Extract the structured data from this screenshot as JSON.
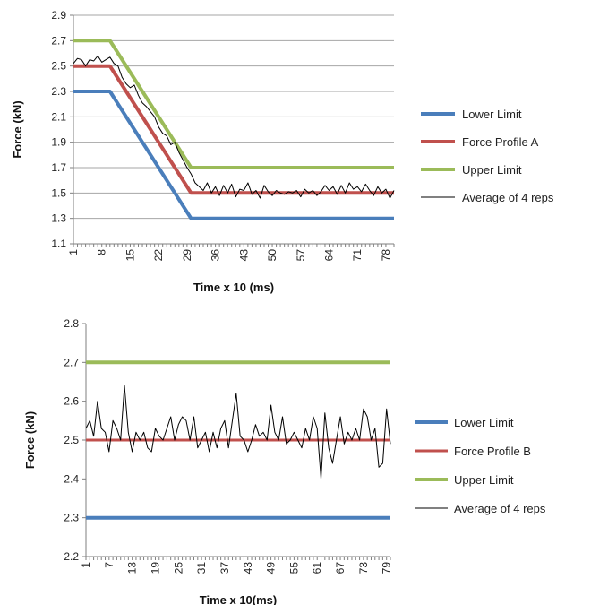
{
  "chart_data": [
    {
      "type": "line",
      "xlabel": "Time x 10 (ms)",
      "ylabel": "Force (kN)",
      "ylim": [
        1.1,
        2.9
      ],
      "y_ticks": [
        "1.1",
        "1.3",
        "1.5",
        "1.7",
        "1.9",
        "2.1",
        "2.3",
        "2.5",
        "2.7",
        "2.9"
      ],
      "x_ticks": [
        "1",
        "8",
        "15",
        "22",
        "29",
        "36",
        "43",
        "50",
        "57",
        "64",
        "71",
        "78"
      ],
      "x_range": [
        1,
        80
      ],
      "grid": "horizontal",
      "legend_position": "right",
      "series": [
        {
          "name": "Lower Limit",
          "color": "#4a7ebb",
          "width": 4,
          "points": [
            [
              1,
              2.3
            ],
            [
              10,
              2.3
            ],
            [
              30,
              1.3
            ],
            [
              80,
              1.3
            ]
          ]
        },
        {
          "name": "Force Profile A",
          "color": "#c0504d",
          "width": 4,
          "points": [
            [
              1,
              2.5
            ],
            [
              10,
              2.5
            ],
            [
              30,
              1.5
            ],
            [
              80,
              1.5
            ]
          ]
        },
        {
          "name": "Upper Limit",
          "color": "#9bbb59",
          "width": 4,
          "points": [
            [
              1,
              2.7
            ],
            [
              10,
              2.7
            ],
            [
              30,
              1.7
            ],
            [
              80,
              1.7
            ]
          ]
        },
        {
          "name": "Average of 4 reps",
          "color": "#000000",
          "width": 1,
          "points": [
            [
              1,
              2.52
            ],
            [
              2,
              2.56
            ],
            [
              3,
              2.55
            ],
            [
              4,
              2.5
            ],
            [
              5,
              2.55
            ],
            [
              6,
              2.54
            ],
            [
              7,
              2.58
            ],
            [
              8,
              2.53
            ],
            [
              9,
              2.55
            ],
            [
              10,
              2.57
            ],
            [
              11,
              2.52
            ],
            [
              12,
              2.5
            ],
            [
              13,
              2.41
            ],
            [
              14,
              2.36
            ],
            [
              15,
              2.33
            ],
            [
              16,
              2.35
            ],
            [
              17,
              2.27
            ],
            [
              18,
              2.21
            ],
            [
              19,
              2.18
            ],
            [
              20,
              2.14
            ],
            [
              21,
              2.1
            ],
            [
              22,
              2.02
            ],
            [
              23,
              1.97
            ],
            [
              24,
              1.95
            ],
            [
              25,
              1.88
            ],
            [
              26,
              1.9
            ],
            [
              27,
              1.82
            ],
            [
              28,
              1.76
            ],
            [
              29,
              1.7
            ],
            [
              30,
              1.65
            ],
            [
              31,
              1.58
            ],
            [
              32,
              1.55
            ],
            [
              33,
              1.52
            ],
            [
              34,
              1.58
            ],
            [
              35,
              1.5
            ],
            [
              36,
              1.55
            ],
            [
              37,
              1.48
            ],
            [
              38,
              1.56
            ],
            [
              39,
              1.5
            ],
            [
              40,
              1.57
            ],
            [
              41,
              1.47
            ],
            [
              42,
              1.53
            ],
            [
              43,
              1.52
            ],
            [
              44,
              1.58
            ],
            [
              45,
              1.49
            ],
            [
              46,
              1.52
            ],
            [
              47,
              1.46
            ],
            [
              48,
              1.56
            ],
            [
              49,
              1.51
            ],
            [
              50,
              1.48
            ],
            [
              51,
              1.52
            ],
            [
              52,
              1.5
            ],
            [
              53,
              1.49
            ],
            [
              54,
              1.51
            ],
            [
              55,
              1.5
            ],
            [
              56,
              1.52
            ],
            [
              57,
              1.47
            ],
            [
              58,
              1.53
            ],
            [
              59,
              1.5
            ],
            [
              60,
              1.52
            ],
            [
              61,
              1.48
            ],
            [
              62,
              1.51
            ],
            [
              63,
              1.56
            ],
            [
              64,
              1.52
            ],
            [
              65,
              1.55
            ],
            [
              66,
              1.49
            ],
            [
              67,
              1.56
            ],
            [
              68,
              1.5
            ],
            [
              69,
              1.58
            ],
            [
              70,
              1.53
            ],
            [
              71,
              1.55
            ],
            [
              72,
              1.51
            ],
            [
              73,
              1.57
            ],
            [
              74,
              1.52
            ],
            [
              75,
              1.48
            ],
            [
              76,
              1.55
            ],
            [
              77,
              1.5
            ],
            [
              78,
              1.53
            ],
            [
              79,
              1.46
            ],
            [
              80,
              1.52
            ]
          ]
        }
      ]
    },
    {
      "type": "line",
      "xlabel": "Time x 10(ms)",
      "ylabel": "Force (kN)",
      "ylim": [
        2.2,
        2.8
      ],
      "y_ticks": [
        "2.2",
        "2.3",
        "2.4",
        "2.5",
        "2.6",
        "2.7",
        "2.8"
      ],
      "x_ticks": [
        "1",
        "7",
        "13",
        "19",
        "25",
        "31",
        "37",
        "43",
        "49",
        "55",
        "61",
        "67",
        "73",
        "79"
      ],
      "x_tick_step": 2,
      "x_range": [
        1,
        80
      ],
      "grid": "none",
      "legend_position": "right",
      "series": [
        {
          "name": "Lower Limit",
          "color": "#4a7ebb",
          "width": 4,
          "points": [
            [
              1,
              2.3
            ],
            [
              80,
              2.3
            ]
          ]
        },
        {
          "name": "Force Profile B",
          "color": "#c0504d",
          "width": 3,
          "points": [
            [
              1,
              2.5
            ],
            [
              80,
              2.5
            ]
          ]
        },
        {
          "name": "Upper Limit",
          "color": "#9bbb59",
          "width": 4,
          "points": [
            [
              1,
              2.7
            ],
            [
              80,
              2.7
            ]
          ]
        },
        {
          "name": "Average of 4 reps",
          "color": "#000000",
          "width": 1,
          "points": [
            [
              1,
              2.53
            ],
            [
              2,
              2.55
            ],
            [
              3,
              2.51
            ],
            [
              4,
              2.6
            ],
            [
              5,
              2.53
            ],
            [
              6,
              2.52
            ],
            [
              7,
              2.47
            ],
            [
              8,
              2.55
            ],
            [
              9,
              2.53
            ],
            [
              10,
              2.5
            ],
            [
              11,
              2.64
            ],
            [
              12,
              2.52
            ],
            [
              13,
              2.47
            ],
            [
              14,
              2.52
            ],
            [
              15,
              2.5
            ],
            [
              16,
              2.52
            ],
            [
              17,
              2.48
            ],
            [
              18,
              2.47
            ],
            [
              19,
              2.53
            ],
            [
              20,
              2.51
            ],
            [
              21,
              2.5
            ],
            [
              22,
              2.53
            ],
            [
              23,
              2.56
            ],
            [
              24,
              2.5
            ],
            [
              25,
              2.54
            ],
            [
              26,
              2.56
            ],
            [
              27,
              2.55
            ],
            [
              28,
              2.5
            ],
            [
              29,
              2.56
            ],
            [
              30,
              2.48
            ],
            [
              31,
              2.5
            ],
            [
              32,
              2.52
            ],
            [
              33,
              2.47
            ],
            [
              34,
              2.52
            ],
            [
              35,
              2.48
            ],
            [
              36,
              2.53
            ],
            [
              37,
              2.55
            ],
            [
              38,
              2.48
            ],
            [
              39,
              2.55
            ],
            [
              40,
              2.62
            ],
            [
              41,
              2.51
            ],
            [
              42,
              2.5
            ],
            [
              43,
              2.47
            ],
            [
              44,
              2.5
            ],
            [
              45,
              2.54
            ],
            [
              46,
              2.51
            ],
            [
              47,
              2.52
            ],
            [
              48,
              2.5
            ],
            [
              49,
              2.59
            ],
            [
              50,
              2.52
            ],
            [
              51,
              2.5
            ],
            [
              52,
              2.56
            ],
            [
              53,
              2.49
            ],
            [
              54,
              2.5
            ],
            [
              55,
              2.52
            ],
            [
              56,
              2.5
            ],
            [
              57,
              2.48
            ],
            [
              58,
              2.53
            ],
            [
              59,
              2.5
            ],
            [
              60,
              2.56
            ],
            [
              61,
              2.53
            ],
            [
              62,
              2.4
            ],
            [
              63,
              2.57
            ],
            [
              64,
              2.48
            ],
            [
              65,
              2.44
            ],
            [
              66,
              2.5
            ],
            [
              67,
              2.56
            ],
            [
              68,
              2.49
            ],
            [
              69,
              2.52
            ],
            [
              70,
              2.5
            ],
            [
              71,
              2.53
            ],
            [
              72,
              2.5
            ],
            [
              73,
              2.58
            ],
            [
              74,
              2.56
            ],
            [
              75,
              2.5
            ],
            [
              76,
              2.53
            ],
            [
              77,
              2.43
            ],
            [
              78,
              2.44
            ],
            [
              79,
              2.58
            ],
            [
              80,
              2.49
            ]
          ]
        }
      ]
    }
  ]
}
